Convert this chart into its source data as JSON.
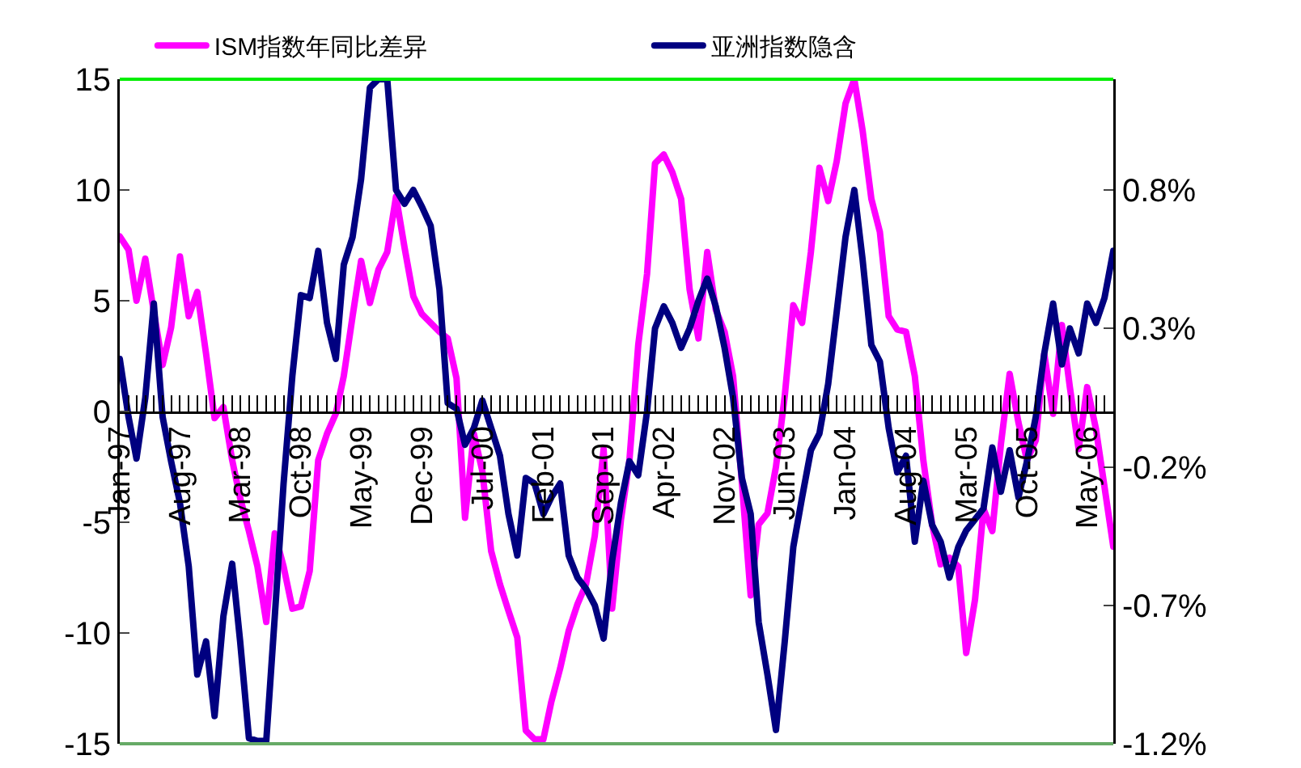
{
  "chart_data": {
    "type": "line",
    "x": [
      "1997-01",
      "1997-02",
      "1997-03",
      "1997-04",
      "1997-05",
      "1997-06",
      "1997-07",
      "1997-08",
      "1997-09",
      "1997-10",
      "1997-11",
      "1997-12",
      "1998-01",
      "1998-02",
      "1998-03",
      "1998-04",
      "1998-05",
      "1998-06",
      "1998-07",
      "1998-08",
      "1998-09",
      "1998-10",
      "1998-11",
      "1998-12",
      "1999-01",
      "1999-02",
      "1999-03",
      "1999-04",
      "1999-05",
      "1999-06",
      "1999-07",
      "1999-08",
      "1999-09",
      "1999-10",
      "1999-11",
      "1999-12",
      "2000-01",
      "2000-02",
      "2000-03",
      "2000-04",
      "2000-05",
      "2000-06",
      "2000-07",
      "2000-08",
      "2000-09",
      "2000-10",
      "2000-11",
      "2000-12",
      "2001-01",
      "2001-02",
      "2001-03",
      "2001-04",
      "2001-05",
      "2001-06",
      "2001-07",
      "2001-08",
      "2001-09",
      "2001-10",
      "2001-11",
      "2001-12",
      "2002-01",
      "2002-02",
      "2002-03",
      "2002-04",
      "2002-05",
      "2002-06",
      "2002-07",
      "2002-08",
      "2002-09",
      "2002-10",
      "2002-11",
      "2002-12",
      "2003-01",
      "2003-02",
      "2003-03",
      "2003-04",
      "2003-05",
      "2003-06",
      "2003-07",
      "2003-08",
      "2003-09",
      "2003-10",
      "2003-11",
      "2003-12",
      "2004-01",
      "2004-02",
      "2004-03",
      "2004-04",
      "2004-05",
      "2004-06",
      "2004-07",
      "2004-08",
      "2004-09",
      "2004-10",
      "2004-11",
      "2004-12",
      "2005-01",
      "2005-02",
      "2005-03",
      "2005-04",
      "2005-05",
      "2005-06",
      "2005-07",
      "2005-08",
      "2005-09",
      "2005-10",
      "2005-11",
      "2005-12",
      "2006-01",
      "2006-02",
      "2006-03",
      "2006-04",
      "2006-05",
      "2006-06",
      "2006-07",
      "2006-08"
    ],
    "series": [
      {
        "name": "ISM指数年同比差异",
        "color": "#ff00ff",
        "values": [
          7.9,
          7.3,
          5.0,
          6.9,
          4.5,
          2.1,
          3.8,
          7.0,
          4.3,
          5.4,
          2.6,
          -0.3,
          0.2,
          -2.2,
          -3.9,
          -5.4,
          -7.0,
          -9.5,
          -5.5,
          -7.0,
          -8.9,
          -8.8,
          -7.2,
          -2.2,
          -1.0,
          -0.1,
          1.6,
          4.3,
          6.8,
          4.9,
          6.4,
          7.2,
          9.7,
          7.4,
          5.2,
          4.4,
          4.0,
          3.6,
          3.3,
          1.5,
          -4.8,
          -1.0,
          -2.7,
          -6.3,
          -7.8,
          -9.0,
          -10.2,
          -14.4,
          -14.8,
          -14.8,
          -13.1,
          -11.6,
          -9.9,
          -8.7,
          -7.8,
          -5.6,
          -1.7,
          -8.9,
          -4.9,
          -2.2,
          3.0,
          6.2,
          11.2,
          11.6,
          10.8,
          9.6,
          5.5,
          3.3,
          7.2,
          4.6,
          3.6,
          1.6,
          -3.2,
          -8.3,
          -5.1,
          -4.6,
          -2.5,
          0.7,
          4.8,
          4.0,
          7.2,
          11.0,
          9.5,
          11.3,
          13.9,
          15.0,
          12.7,
          9.6,
          8.1,
          4.3,
          3.7,
          3.6,
          1.6,
          -2.2,
          -5.1,
          -6.9,
          -6.6,
          -7.0,
          -10.9,
          -8.5,
          -4.4,
          -5.4,
          -1.5,
          1.7,
          -0.5,
          -2.2,
          -1.3,
          2.6,
          -0.1,
          3.9,
          1.1,
          -1.7,
          1.1,
          -0.8,
          -3.4,
          -6.1
        ]
      },
      {
        "name": "亚洲指数隐含",
        "color": "#000080",
        "axis": "y2",
        "values": [
          0.19,
          -0.02,
          -0.17,
          0.05,
          0.39,
          -0.02,
          -0.18,
          -0.33,
          -0.56,
          -0.95,
          -0.83,
          -1.1,
          -0.74,
          -0.55,
          -0.83,
          -1.18,
          -1.19,
          -1.19,
          -0.74,
          -0.26,
          0.13,
          0.42,
          0.41,
          0.58,
          0.32,
          0.19,
          0.53,
          0.63,
          0.84,
          1.17,
          1.2,
          1.2,
          0.8,
          0.75,
          0.8,
          0.74,
          0.67,
          0.44,
          0.03,
          0.01,
          -0.12,
          -0.06,
          0.04,
          -0.06,
          -0.16,
          -0.37,
          -0.52,
          -0.24,
          -0.26,
          -0.37,
          -0.31,
          -0.26,
          -0.52,
          -0.6,
          -0.64,
          -0.7,
          -0.82,
          -0.54,
          -0.33,
          -0.18,
          -0.23,
          0.0,
          0.3,
          0.38,
          0.32,
          0.23,
          0.3,
          0.4,
          0.48,
          0.38,
          0.23,
          0.05,
          -0.24,
          -0.37,
          -0.76,
          -0.95,
          -1.15,
          -0.83,
          -0.49,
          -0.31,
          -0.14,
          -0.08,
          0.1,
          0.36,
          0.63,
          0.8,
          0.55,
          0.24,
          0.18,
          -0.06,
          -0.22,
          -0.16,
          -0.47,
          -0.25,
          -0.41,
          -0.47,
          -0.6,
          -0.49,
          -0.43,
          -0.39,
          -0.35,
          -0.13,
          -0.29,
          -0.14,
          -0.31,
          -0.18,
          -0.02,
          0.21,
          0.39,
          0.17,
          0.3,
          0.21,
          0.39,
          0.32,
          0.41,
          0.58
        ]
      }
    ],
    "xlim": [
      "1997-01",
      "2006-08"
    ],
    "xticks": [
      {
        "value": "1997-01",
        "label": "Jan-97"
      },
      {
        "value": "1997-08",
        "label": "Aug-97"
      },
      {
        "value": "1998-03",
        "label": "Mar-98"
      },
      {
        "value": "1998-10",
        "label": "Oct-98"
      },
      {
        "value": "1999-05",
        "label": "May-99"
      },
      {
        "value": "1999-12",
        "label": "Dec-99"
      },
      {
        "value": "2000-07",
        "label": "Jul-00"
      },
      {
        "value": "2001-02",
        "label": "Feb-01"
      },
      {
        "value": "2001-09",
        "label": "Sep-01"
      },
      {
        "value": "2002-04",
        "label": "Apr-02"
      },
      {
        "value": "2002-11",
        "label": "Nov-02"
      },
      {
        "value": "2003-06",
        "label": "Jun-03"
      },
      {
        "value": "2004-01",
        "label": "Jan-04"
      },
      {
        "value": "2004-08",
        "label": "Aug-04"
      },
      {
        "value": "2005-03",
        "label": "Mar-05"
      },
      {
        "value": "2005-10",
        "label": "Oct-05"
      },
      {
        "value": "2006-05",
        "label": "May-06"
      }
    ],
    "ylim": [
      -15,
      15
    ],
    "yticks": [
      -15,
      -10,
      -5,
      0,
      5,
      10,
      15
    ],
    "y2lim": [
      -1.2,
      1.2
    ],
    "y2ticks": [
      {
        "value": -1.2,
        "label": "-1.2%"
      },
      {
        "value": -0.7,
        "label": "-0.7%"
      },
      {
        "value": -0.2,
        "label": "-0.2%"
      },
      {
        "value": 0.3,
        "label": "0.3%"
      },
      {
        "value": 0.8,
        "label": "0.8%"
      }
    ],
    "grid": false,
    "legend": "top",
    "marker": "none",
    "line_style": "solid"
  }
}
